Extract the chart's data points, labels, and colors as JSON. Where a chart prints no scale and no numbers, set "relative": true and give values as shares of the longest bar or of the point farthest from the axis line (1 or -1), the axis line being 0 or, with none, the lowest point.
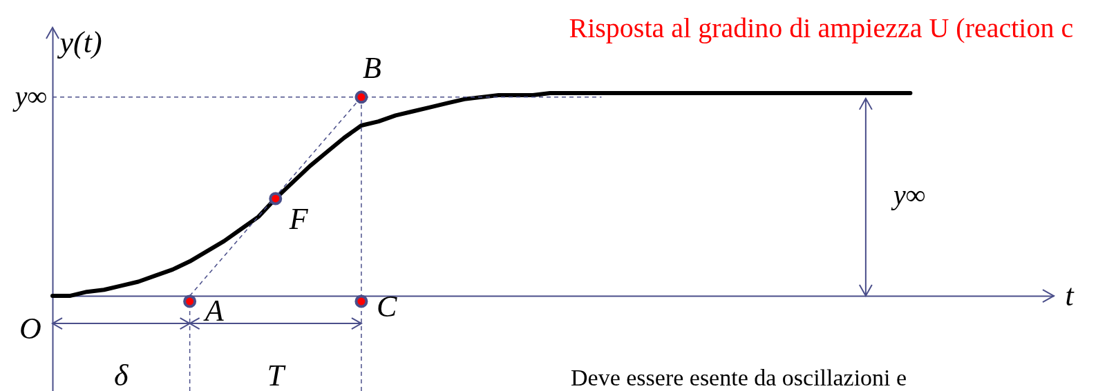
{
  "chart_data": {
    "type": "line",
    "relative": true,
    "title": "Risposta al gradino di ampiezza U (reaction c",
    "xlabel": "t",
    "ylabel": "y(t)",
    "categories": [
      null,
      null,
      null,
      null,
      null,
      null,
      null,
      null,
      null,
      null,
      null,
      null,
      null,
      null,
      null,
      null,
      null,
      null,
      null,
      null,
      null,
      null,
      null,
      null,
      null,
      null,
      null,
      null,
      null,
      null,
      null,
      null,
      null,
      null,
      null,
      null,
      null,
      null,
      null,
      null,
      null,
      null,
      null,
      null,
      null,
      null,
      null,
      null,
      null,
      null,
      null,
      null,
      null,
      null,
      null,
      null,
      null,
      null,
      null
    ],
    "series": [
      {
        "color": "#000000",
        "values": [
          0,
          0,
          0.02,
          0.03,
          0.05,
          0.07,
          0.1,
          0.13,
          0.17,
          0.22,
          0.27,
          0.33,
          0.39,
          0.48,
          0.56,
          0.64,
          0.71,
          0.78,
          0.84,
          0.86,
          0.89,
          0.91,
          0.93,
          0.95,
          0.97,
          0.98,
          0.99,
          0.99,
          0.99,
          1,
          1,
          1,
          1,
          1,
          1,
          1,
          1,
          1,
          1,
          1,
          1,
          1,
          1,
          1,
          1,
          1,
          1,
          1,
          1,
          1,
          1,
          null,
          null,
          null,
          null,
          null,
          null,
          null,
          null
        ]
      }
    ],
    "ref_lines": [
      {
        "axis": "y",
        "value": 0.98,
        "label": "y∞",
        "color": "#4a4e8a",
        "line_style": "dashed"
      }
    ],
    "annotations": [
      "O",
      "δ",
      "T",
      "y∞",
      "Deve essere esente da oscillazioni e",
      "A",
      "F",
      "B",
      "C"
    ]
  }
}
